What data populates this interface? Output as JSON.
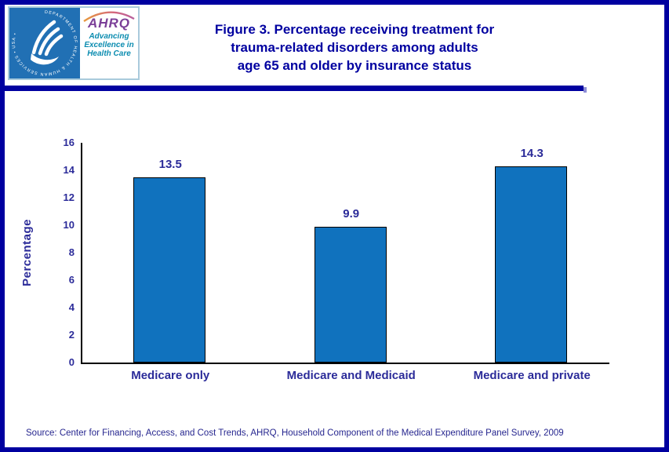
{
  "header": {
    "title_lines": [
      "Figure 3. Percentage receiving treatment for",
      "trauma-related disorders among adults",
      "age 65 and older by insurance status"
    ],
    "logo": {
      "seal_text": "DEPARTMENT OF HEALTH & HUMAN SERVICES • USA •",
      "ahrq_acronym": "AHRQ",
      "tagline_lines": [
        "Advancing",
        "Excellence in",
        "Health Care"
      ]
    }
  },
  "chart_data": {
    "type": "bar",
    "title": "Figure 3. Percentage receiving treatment for trauma-related disorders among adults age 65 and older by insurance status",
    "categories": [
      "Medicare only",
      "Medicare and Medicaid",
      "Medicare and private"
    ],
    "values": [
      13.5,
      9.9,
      14.3
    ],
    "data_labels": [
      "13.5",
      "9.9",
      "14.3"
    ],
    "xlabel": "",
    "ylabel": "Percentage",
    "ylim": [
      0,
      16
    ],
    "ytick_step": 2,
    "grid": false,
    "legend": false,
    "bar_color": "#1072BE"
  },
  "source": {
    "text": "Source: Center for Financing, Access, and Cost Trends, AHRQ, Household Component  of the Medical Expenditure Panel Survey,  2009"
  },
  "colors": {
    "navy": "#0000A0",
    "bar_blue": "#1072BE",
    "axis_text": "#2B2B99",
    "source_navy": "#26268F",
    "seal_blue": "#2170B4",
    "ahrq_purple": "#7B3F98",
    "tagline_teal": "#0B8CB0",
    "logo_border": "#A9CADC"
  }
}
